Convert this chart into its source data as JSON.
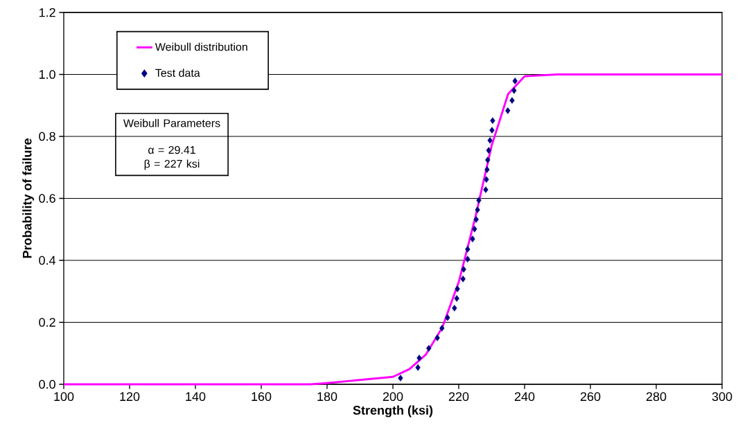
{
  "chart_data": {
    "type": "line",
    "xlabel": "Strength (ksi)",
    "ylabel": "Probability of failure",
    "xlim": [
      100,
      300
    ],
    "xticks": [
      100,
      120,
      140,
      160,
      180,
      200,
      220,
      240,
      260,
      280,
      300
    ],
    "ylim": [
      0,
      1.2
    ],
    "yticks": [
      {
        "value": 0,
        "label": "0.0"
      },
      {
        "value": 0.2,
        "label": "0.2"
      },
      {
        "value": 0.4,
        "label": "0.4"
      },
      {
        "value": 0.6,
        "label": "0.6"
      },
      {
        "value": 0.8,
        "label": "0.8"
      },
      {
        "value": 1.0,
        "label": "1.0"
      },
      {
        "value": 1.2,
        "label": "1.2"
      }
    ],
    "grid": "y",
    "legend": "top left",
    "annotations": [
      "Weibull Parameters",
      "α = 29.41",
      "β = 227 ksi"
    ],
    "series": [
      {
        "name": "Weibull distribution",
        "color": "#ff00ff",
        "marker": "none",
        "x": [
          100,
          175,
          180,
          200,
          205,
          210,
          215,
          220,
          225,
          230,
          235,
          240,
          250,
          300
        ],
        "values": [
          0,
          0,
          0.004,
          0.024,
          0.049,
          0.096,
          0.183,
          0.33,
          0.537,
          0.77,
          0.937,
          0.994,
          1.0,
          1.0
        ]
      },
      {
        "name": "Test data",
        "type": "scatter",
        "color": "#000080",
        "marker": "diamond",
        "x": [
          202.3,
          207.6,
          208.0,
          210.9,
          213.5,
          214.9,
          216.6,
          218.7,
          219.4,
          219.6,
          221.3,
          221.5,
          222.7,
          222.7,
          224.2,
          224.8,
          225.3,
          225.7,
          226.1,
          228.2,
          228.4,
          228.6,
          228.8,
          229.1,
          229.5,
          230.1,
          230.3,
          234.9,
          236.2,
          236.8,
          237.1
        ],
        "values": [
          0.02,
          0.054,
          0.085,
          0.116,
          0.15,
          0.181,
          0.215,
          0.246,
          0.277,
          0.308,
          0.34,
          0.371,
          0.404,
          0.436,
          0.469,
          0.501,
          0.532,
          0.563,
          0.594,
          0.628,
          0.661,
          0.693,
          0.724,
          0.755,
          0.787,
          0.82,
          0.851,
          0.883,
          0.916,
          0.948,
          0.979
        ]
      }
    ]
  }
}
